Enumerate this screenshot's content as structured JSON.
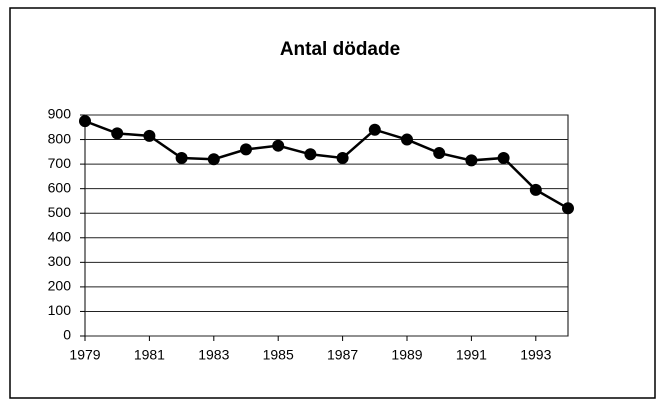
{
  "chart_data": {
    "type": "line",
    "title": "Antal dödade",
    "x": [
      1979,
      1980,
      1981,
      1982,
      1983,
      1984,
      1985,
      1986,
      1987,
      1988,
      1989,
      1990,
      1991,
      1992,
      1993,
      1994
    ],
    "values": [
      875,
      825,
      815,
      725,
      720,
      760,
      775,
      740,
      725,
      840,
      800,
      745,
      715,
      725,
      595,
      520
    ],
    "color": "#000000",
    "xlim": [
      1979,
      1994
    ],
    "xticks": [
      1979,
      1981,
      1983,
      1985,
      1987,
      1989,
      1991,
      1993
    ],
    "ylim": [
      0,
      900
    ],
    "yticks": [
      0,
      100,
      200,
      300,
      400,
      500,
      600,
      700,
      800,
      900
    ],
    "grid": true
  }
}
